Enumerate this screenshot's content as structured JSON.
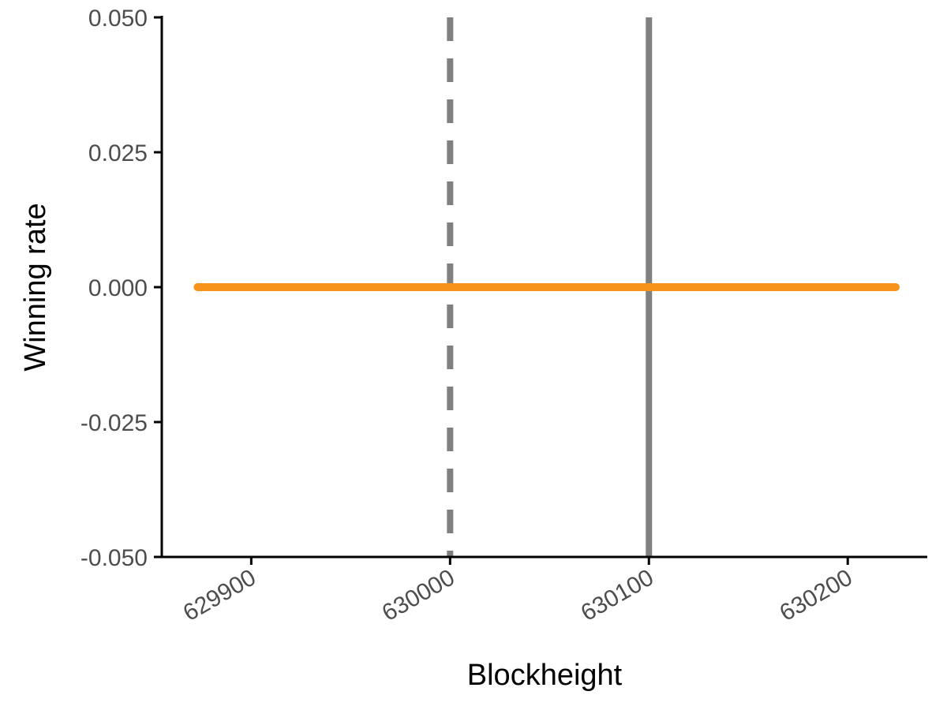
{
  "chart_data": {
    "type": "line",
    "xlabel": "Blockheight",
    "ylabel": "Winning rate",
    "xlim": [
      629855,
      630240
    ],
    "ylim": [
      -0.05,
      0.05
    ],
    "x_ticks": [
      629900,
      630000,
      630100,
      630200
    ],
    "x_tick_labels": [
      "629900",
      "630000",
      "630100",
      "630200"
    ],
    "y_ticks": [
      -0.05,
      -0.025,
      0.0,
      0.025,
      0.05
    ],
    "y_tick_labels": [
      "-0.050",
      "-0.025",
      "0.000",
      "0.025",
      "0.050"
    ],
    "grid": false,
    "legend": "none",
    "series": [
      {
        "x_start": 629873,
        "x_end": 630240,
        "value": 0.0,
        "color": "#F7931A"
      }
    ],
    "reference_lines": [
      {
        "x": 630000,
        "style": "dashed",
        "color": "#808080"
      },
      {
        "x": 630100,
        "style": "solid",
        "color": "#808080"
      }
    ]
  }
}
